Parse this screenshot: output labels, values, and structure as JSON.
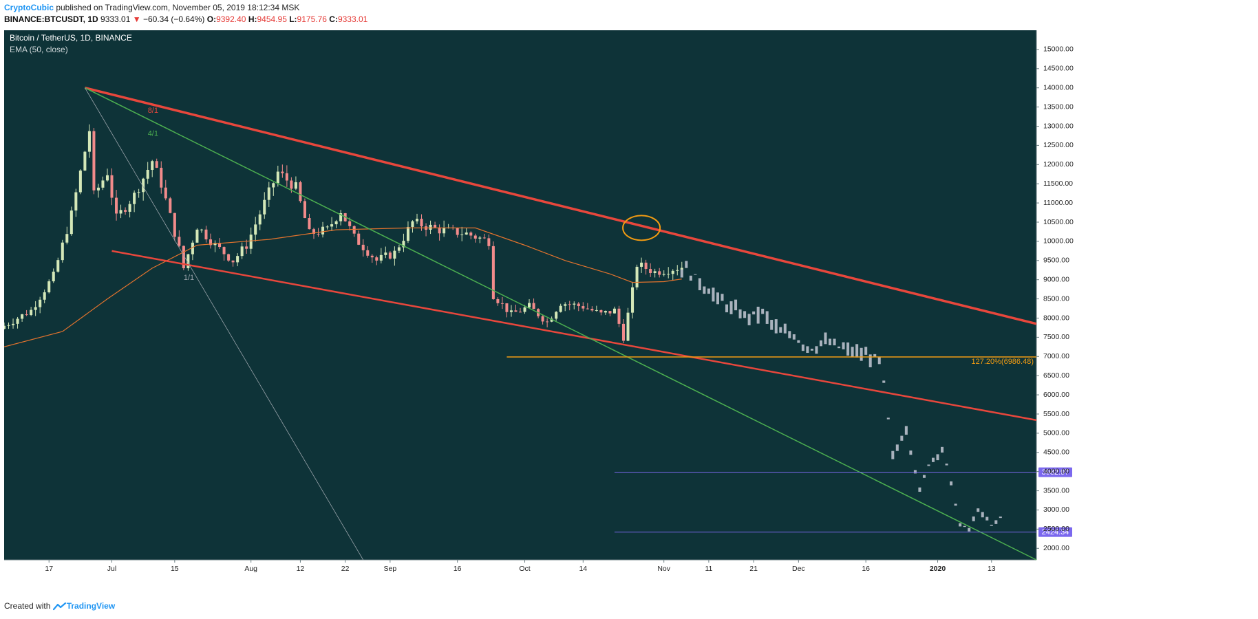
{
  "header": {
    "author": "CryptoCubic",
    "published_text": " published on TradingView.com, November 05, 2019 18:12:34 MSK",
    "symbol": "BINANCE:BTCUSDT, 1D",
    "last": "9333.01",
    "change_arrow": "▼",
    "change": "−60.34 (−0.64%)",
    "open_label": "O:",
    "open": "9392.40",
    "high_label": "H:",
    "high": "9454.95",
    "low_label": "L:",
    "low": "9175.76",
    "close_label": "C:",
    "close": "9333.01"
  },
  "footer": {
    "created_with": "Created with",
    "brand": "TradingView",
    "logo_icon": "tradingview-logo-icon"
  },
  "chart_data": {
    "type": "candlestick",
    "title": "Bitcoin / TetherUS, 1D, BINANCE",
    "indicator": "EMA (50, close)",
    "colors": {
      "background": "#0e3338",
      "up": "#d4e8b8",
      "down": "#f28b8b",
      "projection": "#a9b2bd",
      "ema": "#e3732d",
      "channel": "#e8473c",
      "fan": "#4caf50",
      "level": "#f39c12",
      "target": "#7b68ee",
      "oval": "#f39c12"
    },
    "x_range": [
      "2019-06-07",
      "2020-01-23"
    ],
    "y_range": [
      1700,
      15500
    ],
    "y_ticks": [
      2000,
      2500,
      3000,
      3500,
      4000,
      4500,
      5000,
      5500,
      6000,
      6500,
      7000,
      7500,
      8000,
      8500,
      9000,
      9500,
      10000,
      10500,
      11000,
      11500,
      12000,
      12500,
      13000,
      13500,
      14000,
      14500,
      15000
    ],
    "x_ticks": [
      {
        "date": "2019-06-17",
        "label": "17"
      },
      {
        "date": "2019-07-01",
        "label": "Jul"
      },
      {
        "date": "2019-07-15",
        "label": "15"
      },
      {
        "date": "2019-08-01",
        "label": "Aug"
      },
      {
        "date": "2019-08-12",
        "label": "12"
      },
      {
        "date": "2019-08-22",
        "label": "22"
      },
      {
        "date": "2019-09-01",
        "label": "Sep"
      },
      {
        "date": "2019-09-16",
        "label": "16"
      },
      {
        "date": "2019-10-01",
        "label": "Oct"
      },
      {
        "date": "2019-10-14",
        "label": "14"
      },
      {
        "date": "2019-11-01",
        "label": "Nov"
      },
      {
        "date": "2019-11-11",
        "label": "11"
      },
      {
        "date": "2019-11-21",
        "label": "21"
      },
      {
        "date": "2019-12-01",
        "label": "Dec"
      },
      {
        "date": "2019-12-16",
        "label": "16"
      },
      {
        "date": "2020-01-01",
        "label": "2020"
      },
      {
        "date": "2020-01-13",
        "label": "13"
      }
    ],
    "price_anchors": [
      [
        "2019-06-07",
        7800
      ],
      [
        "2019-06-13",
        8200
      ],
      [
        "2019-06-18",
        9100
      ],
      [
        "2019-06-22",
        10700
      ],
      [
        "2019-06-26",
        12900
      ],
      [
        "2019-06-27",
        11200
      ],
      [
        "2019-06-30",
        11800
      ],
      [
        "2019-07-02",
        10600
      ],
      [
        "2019-07-06",
        11200
      ],
      [
        "2019-07-10",
        12100
      ],
      [
        "2019-07-12",
        11500
      ],
      [
        "2019-07-16",
        9800
      ],
      [
        "2019-07-17",
        9300
      ],
      [
        "2019-07-20",
        10400
      ],
      [
        "2019-07-24",
        9900
      ],
      [
        "2019-07-28",
        9500
      ],
      [
        "2019-07-31",
        9900
      ],
      [
        "2019-08-04",
        11000
      ],
      [
        "2019-08-07",
        11800
      ],
      [
        "2019-08-11",
        11400
      ],
      [
        "2019-08-14",
        10200
      ],
      [
        "2019-08-18",
        10300
      ],
      [
        "2019-08-21",
        10800
      ],
      [
        "2019-08-24",
        10100
      ],
      [
        "2019-08-29",
        9500
      ],
      [
        "2019-09-02",
        9700
      ],
      [
        "2019-09-06",
        10500
      ],
      [
        "2019-09-12",
        10300
      ],
      [
        "2019-09-18",
        10200
      ],
      [
        "2019-09-23",
        10000
      ],
      [
        "2019-09-24",
        8600
      ],
      [
        "2019-09-28",
        8100
      ],
      [
        "2019-10-02",
        8300
      ],
      [
        "2019-10-06",
        7900
      ],
      [
        "2019-10-09",
        8400
      ],
      [
        "2019-10-14",
        8300
      ],
      [
        "2019-10-18",
        8100
      ],
      [
        "2019-10-21",
        8200
      ],
      [
        "2019-10-23",
        7500
      ],
      [
        "2019-10-25",
        8700
      ],
      [
        "2019-10-26",
        9400
      ],
      [
        "2019-10-30",
        9200
      ],
      [
        "2019-11-05",
        9333
      ]
    ],
    "candles_note": "daily candles; up = close above open",
    "ema_anchors": [
      [
        "2019-06-07",
        7250
      ],
      [
        "2019-06-20",
        7650
      ],
      [
        "2019-06-30",
        8500
      ],
      [
        "2019-07-10",
        9300
      ],
      [
        "2019-07-20",
        9900
      ],
      [
        "2019-08-05",
        10050
      ],
      [
        "2019-08-20",
        10300
      ],
      [
        "2019-09-05",
        10350
      ],
      [
        "2019-09-20",
        10350
      ],
      [
        "2019-10-01",
        9900
      ],
      [
        "2019-10-10",
        9500
      ],
      [
        "2019-10-20",
        9150
      ],
      [
        "2019-10-25",
        8930
      ],
      [
        "2019-11-01",
        8950
      ],
      [
        "2019-11-05",
        9020
      ]
    ],
    "projection_anchors": [
      [
        "2019-11-05",
        9333
      ],
      [
        "2019-11-08",
        9050
      ],
      [
        "2019-11-12",
        8600
      ],
      [
        "2019-11-16",
        8250
      ],
      [
        "2019-11-19",
        8050
      ],
      [
        "2019-11-23",
        8150
      ],
      [
        "2019-11-27",
        7600
      ],
      [
        "2019-11-30",
        7550
      ],
      [
        "2019-12-02",
        7300
      ],
      [
        "2019-12-05",
        7200
      ],
      [
        "2019-12-06",
        7400
      ],
      [
        "2019-12-19",
        6900
      ],
      [
        "2019-12-20",
        6300
      ],
      [
        "2019-12-22",
        4400
      ],
      [
        "2019-12-25",
        5100
      ],
      [
        "2019-12-28",
        3500
      ],
      [
        "2019-12-30",
        4200
      ],
      [
        "2020-01-02",
        4600
      ],
      [
        "2020-01-04",
        3700
      ],
      [
        "2020-01-06",
        2600
      ],
      [
        "2020-01-08",
        2500
      ],
      [
        "2020-01-10",
        3000
      ],
      [
        "2020-01-13",
        2600
      ],
      [
        "2020-01-15",
        2800
      ]
    ],
    "projection_note": "projected path drawn as gray bars",
    "lines": [
      {
        "name": "upper-channel",
        "color": "#e8473c",
        "from": [
          "2019-06-25",
          14000
        ],
        "to": [
          "2020-01-23",
          7850
        ],
        "width": 3.5
      },
      {
        "name": "lower-channel",
        "color": "#e8473c",
        "from": [
          "2019-07-01",
          9750
        ],
        "to": [
          "2020-01-23",
          5340
        ],
        "width": 2.5
      },
      {
        "name": "fan-4-1",
        "color": "#4caf50",
        "from": [
          "2019-06-25",
          14000
        ],
        "to": [
          "2020-01-23",
          1700
        ],
        "width": 1.5
      },
      {
        "name": "fan-1-1",
        "color": "#9aa4ab",
        "from": [
          "2019-06-25",
          14000
        ],
        "to": [
          "2019-08-26",
          1700
        ],
        "width": 0.8
      }
    ],
    "fan_labels": [
      {
        "text": "8/1",
        "date": "2019-07-09",
        "price": 13400,
        "color": "#e8473c"
      },
      {
        "text": "4/1",
        "date": "2019-07-09",
        "price": 12800,
        "color": "#4caf50"
      },
      {
        "text": "1/1",
        "date": "2019-07-17",
        "price": 9050,
        "color": "#9aa4ab"
      }
    ],
    "levels": [
      {
        "price": 6986.48,
        "from": "2019-09-27",
        "to": "2020-01-23",
        "color": "#f39c12",
        "label": "127.20%(6986.48)"
      },
      {
        "price": 3982.97,
        "from": "2019-10-21",
        "to": "2020-01-23",
        "color": "#7b68ee",
        "axis_label": "3982.97"
      },
      {
        "price": 2424.34,
        "from": "2019-10-21",
        "to": "2020-01-23",
        "color": "#7b68ee",
        "axis_label": "2424.34"
      }
    ],
    "highlight_oval": {
      "date": "2019-10-27",
      "price": 10350,
      "color": "#f39c12"
    }
  }
}
